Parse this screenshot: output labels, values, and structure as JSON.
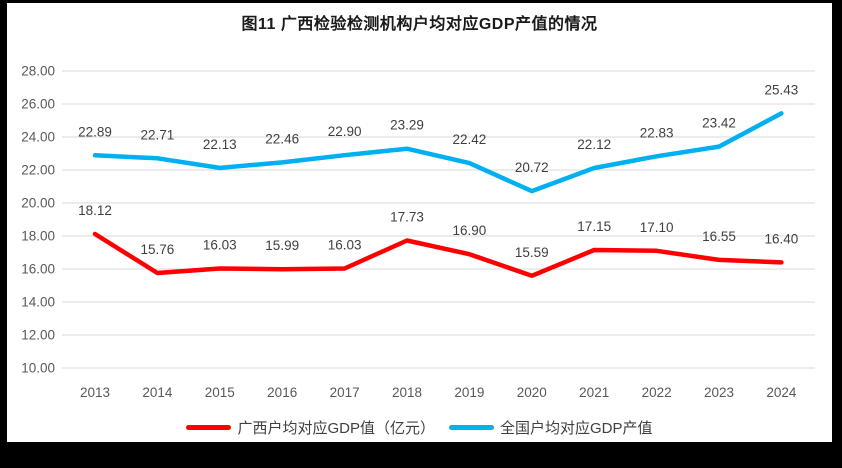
{
  "title": "图11 广西检验检测机构户均对应GDP产值的情况",
  "chart_data": {
    "type": "line",
    "title": "图11 广西检验检测机构户均对应GDP产值的情况",
    "categories": [
      "2013",
      "2014",
      "2015",
      "2016",
      "2017",
      "2018",
      "2019",
      "2020",
      "2021",
      "2022",
      "2023",
      "2024"
    ],
    "series": [
      {
        "name": "广西户均对应GDP值（亿元）",
        "color": "#FF0000",
        "values": [
          18.12,
          15.76,
          16.03,
          15.99,
          16.03,
          17.73,
          16.9,
          15.59,
          17.15,
          17.1,
          16.55,
          16.4
        ]
      },
      {
        "name": "全国户均对应GDP产值",
        "color": "#00B0F0",
        "values": [
          22.89,
          22.71,
          22.13,
          22.46,
          22.9,
          23.29,
          22.42,
          20.72,
          22.12,
          22.83,
          23.42,
          25.43
        ]
      }
    ],
    "y_axis": {
      "min": 10,
      "max": 28,
      "step": 2,
      "tick_labels": [
        "10.00",
        "12.00",
        "14.00",
        "16.00",
        "18.00",
        "20.00",
        "22.00",
        "24.00",
        "26.00",
        "28.00"
      ]
    },
    "xlabel": "",
    "ylabel": "",
    "grid": true,
    "data_labels": true,
    "legend_position": "bottom"
  },
  "colors": {
    "frame_border": "#000000",
    "background": "#ffffff",
    "gridline": "#D9D9D9",
    "axis_text": "#595959",
    "data_label_text": "#404040",
    "series_guangxi": "#FF0000",
    "series_national": "#00B0F0"
  }
}
